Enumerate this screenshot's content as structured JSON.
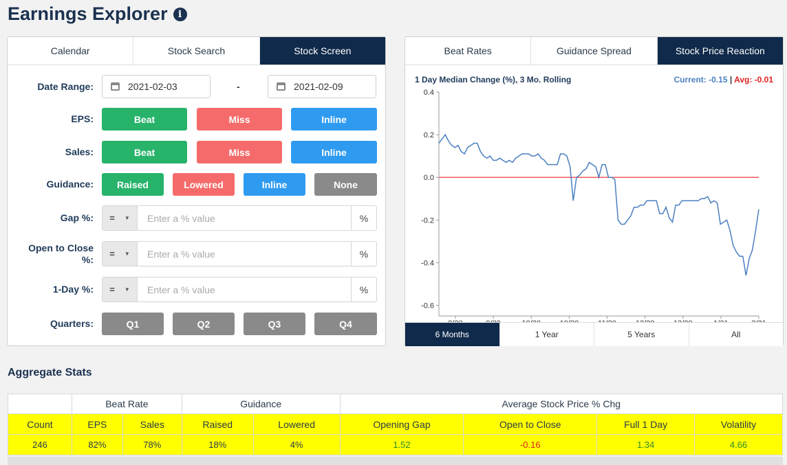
{
  "header": {
    "title": "Earnings Explorer"
  },
  "left_tabs": [
    {
      "label": "Calendar",
      "active": false
    },
    {
      "label": "Stock Search",
      "active": false
    },
    {
      "label": "Stock Screen",
      "active": true
    }
  ],
  "form": {
    "date_range": {
      "label": "Date Range:",
      "start": "2021-02-03",
      "separator": "-",
      "end": "2021-02-09"
    },
    "eps": {
      "label": "EPS:",
      "options": [
        "Beat",
        "Miss",
        "Inline"
      ]
    },
    "sales": {
      "label": "Sales:",
      "options": [
        "Beat",
        "Miss",
        "Inline"
      ]
    },
    "guidance": {
      "label": "Guidance:",
      "options": [
        "Raised",
        "Lowered",
        "Inline",
        "None"
      ]
    },
    "gap": {
      "label": "Gap %:",
      "operator": "=",
      "placeholder": "Enter a % value",
      "unit": "%"
    },
    "open_close": {
      "label": "Open to Close %:",
      "operator": "=",
      "placeholder": "Enter a % value",
      "unit": "%"
    },
    "one_day": {
      "label": "1-Day %:",
      "operator": "=",
      "placeholder": "Enter a % value",
      "unit": "%"
    },
    "quarters": {
      "label": "Quarters:",
      "options": [
        "Q1",
        "Q2",
        "Q3",
        "Q4"
      ]
    }
  },
  "right_tabs": [
    {
      "label": "Beat Rates",
      "active": false
    },
    {
      "label": "Guidance Spread",
      "active": false
    },
    {
      "label": "Stock Price Reaction",
      "active": true
    }
  ],
  "chart_data": {
    "type": "line",
    "title": "1 Day Median Change (%), 3 Mo. Rolling",
    "legend": {
      "current_label": "Current: -0.15",
      "separator": " | ",
      "avg_label": "Avg: -0.01"
    },
    "colors": {
      "line": "#4a7fc1",
      "avg_line": "#f05a5a",
      "current": "#4a7fc1",
      "avg": "#e02020"
    },
    "ylim": [
      -0.65,
      0.4
    ],
    "yticks": [
      "0.4",
      "0.2",
      "0.0",
      "-0.2",
      "-0.4",
      "-0.6"
    ],
    "ytick_values": [
      0.4,
      0.2,
      0.0,
      -0.2,
      -0.4,
      -0.6
    ],
    "xticks": [
      "8/20",
      "9/20",
      "10/20",
      "10/20",
      "11/20",
      "12/20",
      "12/20",
      "1/21",
      "2/21"
    ],
    "avg": -0.01,
    "series": [
      {
        "values": [
          0.16,
          0.18,
          0.2,
          0.17,
          0.15,
          0.14,
          0.15,
          0.12,
          0.11,
          0.14,
          0.15,
          0.16,
          0.16,
          0.12,
          0.1,
          0.09,
          0.1,
          0.08,
          0.08,
          0.09,
          0.08,
          0.07,
          0.08,
          0.07,
          0.09,
          0.1,
          0.11,
          0.11,
          0.11,
          0.1,
          0.1,
          0.11,
          0.09,
          0.08,
          0.06,
          0.06,
          0.06,
          0.06,
          0.11,
          0.11,
          0.1,
          0.05,
          -0.11,
          0.0,
          0.01,
          0.03,
          0.04,
          0.07,
          0.06,
          0.05,
          0.0,
          0.06,
          0.06,
          0.0,
          0.0,
          -0.01,
          -0.2,
          -0.22,
          -0.22,
          -0.2,
          -0.18,
          -0.14,
          -0.14,
          -0.13,
          -0.13,
          -0.11,
          -0.11,
          -0.11,
          -0.11,
          -0.17,
          -0.17,
          -0.14,
          -0.19,
          -0.21,
          -0.13,
          -0.13,
          -0.11,
          -0.11,
          -0.11,
          -0.11,
          -0.11,
          -0.11,
          -0.1,
          -0.1,
          -0.09,
          -0.12,
          -0.11,
          -0.12,
          -0.22,
          -0.21,
          -0.2,
          -0.25,
          -0.32,
          -0.35,
          -0.37,
          -0.37,
          -0.46,
          -0.38,
          -0.34,
          -0.25,
          -0.15
        ]
      }
    ]
  },
  "range_tabs": [
    {
      "label": "6 Months",
      "active": true
    },
    {
      "label": "1 Year",
      "active": false
    },
    {
      "label": "5 Years",
      "active": false
    },
    {
      "label": "All",
      "active": false
    }
  ],
  "stats": {
    "title": "Aggregate Stats",
    "groups": {
      "beat_rate": "Beat Rate",
      "guidance": "Guidance",
      "avg_chg": "Average Stock Price % Chg"
    },
    "headers": [
      "Count",
      "EPS",
      "Sales",
      "Raised",
      "Lowered",
      "Opening Gap",
      "Open to Close",
      "Full 1 Day",
      "Volatility"
    ],
    "values": [
      "246",
      "82%",
      "78%",
      "18%",
      "4%",
      "1.52",
      "-0.16",
      "1.34",
      "4.66"
    ]
  }
}
